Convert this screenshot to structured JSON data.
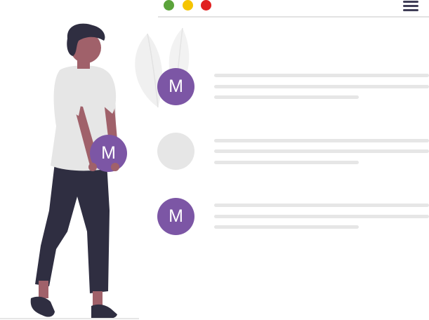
{
  "window": {
    "controls": [
      {
        "name": "green",
        "color": "#5ba33b"
      },
      {
        "name": "yellow",
        "color": "#f5c400"
      },
      {
        "name": "red",
        "color": "#e02020"
      }
    ],
    "menu_icon": "hamburger-menu-icon"
  },
  "contacts": [
    {
      "initial": "M",
      "has_avatar": true
    },
    {
      "initial": "",
      "has_avatar": false
    },
    {
      "initial": "M",
      "has_avatar": true
    }
  ],
  "held_card": {
    "initial": "M"
  },
  "colors": {
    "accent": "#7c56a5",
    "skin": "#a0616a",
    "hair": "#2f2e41",
    "shirt": "#e6e6e6",
    "pants": "#2f2e41",
    "placeholder": "#e6e6e6",
    "leaf": "#f0f0f0"
  }
}
